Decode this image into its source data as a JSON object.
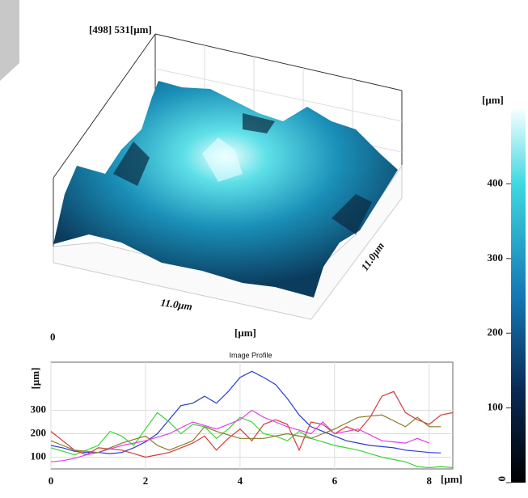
{
  "chart_data": [
    {
      "type": "surface",
      "title": "[498] 531[μm]",
      "xlabel": "11.0μm",
      "ylabel": "11.0μm",
      "origin_label": "0",
      "unit_label": "[μm]",
      "colorbar": {
        "label": "[μm]",
        "zlim": [
          0,
          500
        ],
        "zticks": [
          0,
          100,
          200,
          300,
          400
        ]
      }
    },
    {
      "type": "line",
      "title": "Image Profile",
      "xlabel": "[μm]",
      "ylabel": "[μm]",
      "x": [
        0,
        0.25,
        0.5,
        0.75,
        1,
        1.25,
        1.5,
        1.75,
        2,
        2.25,
        2.5,
        2.75,
        3,
        3.25,
        3.5,
        3.75,
        4,
        4.25,
        4.5,
        4.75,
        5,
        5.25,
        5.5,
        5.75,
        6,
        6.25,
        6.5,
        6.75,
        7,
        7.25,
        7.5,
        7.75,
        8,
        8.25,
        8.5
      ],
      "series": [
        {
          "color": "#2a3ccc",
          "values": [
            150,
            140,
            125,
            120,
            120,
            115,
            120,
            140,
            165,
            200,
            260,
            320,
            330,
            360,
            330,
            380,
            440,
            466,
            440,
            410,
            350,
            280,
            230,
            210,
            190,
            170,
            160,
            150,
            145,
            140,
            130,
            125,
            120,
            118,
            null
          ]
        },
        {
          "color": "#3ad43a",
          "values": [
            140,
            125,
            110,
            130,
            150,
            210,
            190,
            150,
            220,
            290,
            250,
            200,
            240,
            230,
            180,
            220,
            270,
            250,
            200,
            190,
            170,
            210,
            180,
            165,
            150,
            140,
            130,
            115,
            100,
            90,
            80,
            60,
            55,
            60,
            55
          ]
        },
        {
          "color": "#d43a3a",
          "values": [
            210,
            170,
            130,
            110,
            140,
            135,
            130,
            115,
            100,
            110,
            120,
            140,
            160,
            190,
            130,
            180,
            220,
            170,
            240,
            260,
            240,
            130,
            250,
            240,
            200,
            230,
            210,
            270,
            360,
            380,
            290,
            260,
            240,
            280,
            290
          ]
        },
        {
          "color": "#e040e0",
          "values": [
            80,
            85,
            95,
            110,
            120,
            135,
            150,
            160,
            170,
            185,
            200,
            225,
            250,
            235,
            220,
            240,
            260,
            300,
            270,
            250,
            230,
            215,
            200,
            250,
            200,
            210,
            220,
            195,
            170,
            165,
            160,
            180,
            160,
            null,
            null
          ]
        },
        {
          "color": "#8a7a2a",
          "values": [
            170,
            150,
            130,
            125,
            120,
            140,
            160,
            175,
            190,
            150,
            130,
            150,
            170,
            230,
            210,
            195,
            180,
            180,
            180,
            190,
            200,
            190,
            180,
            200,
            220,
            245,
            270,
            275,
            280,
            255,
            230,
            270,
            230,
            230,
            null
          ]
        }
      ],
      "xlim": [
        0,
        8.5
      ],
      "ylim": [
        50,
        505
      ],
      "xticks": [
        0,
        2,
        4,
        6,
        8
      ],
      "yticks": [
        100,
        200,
        300
      ],
      "grid": true
    }
  ]
}
